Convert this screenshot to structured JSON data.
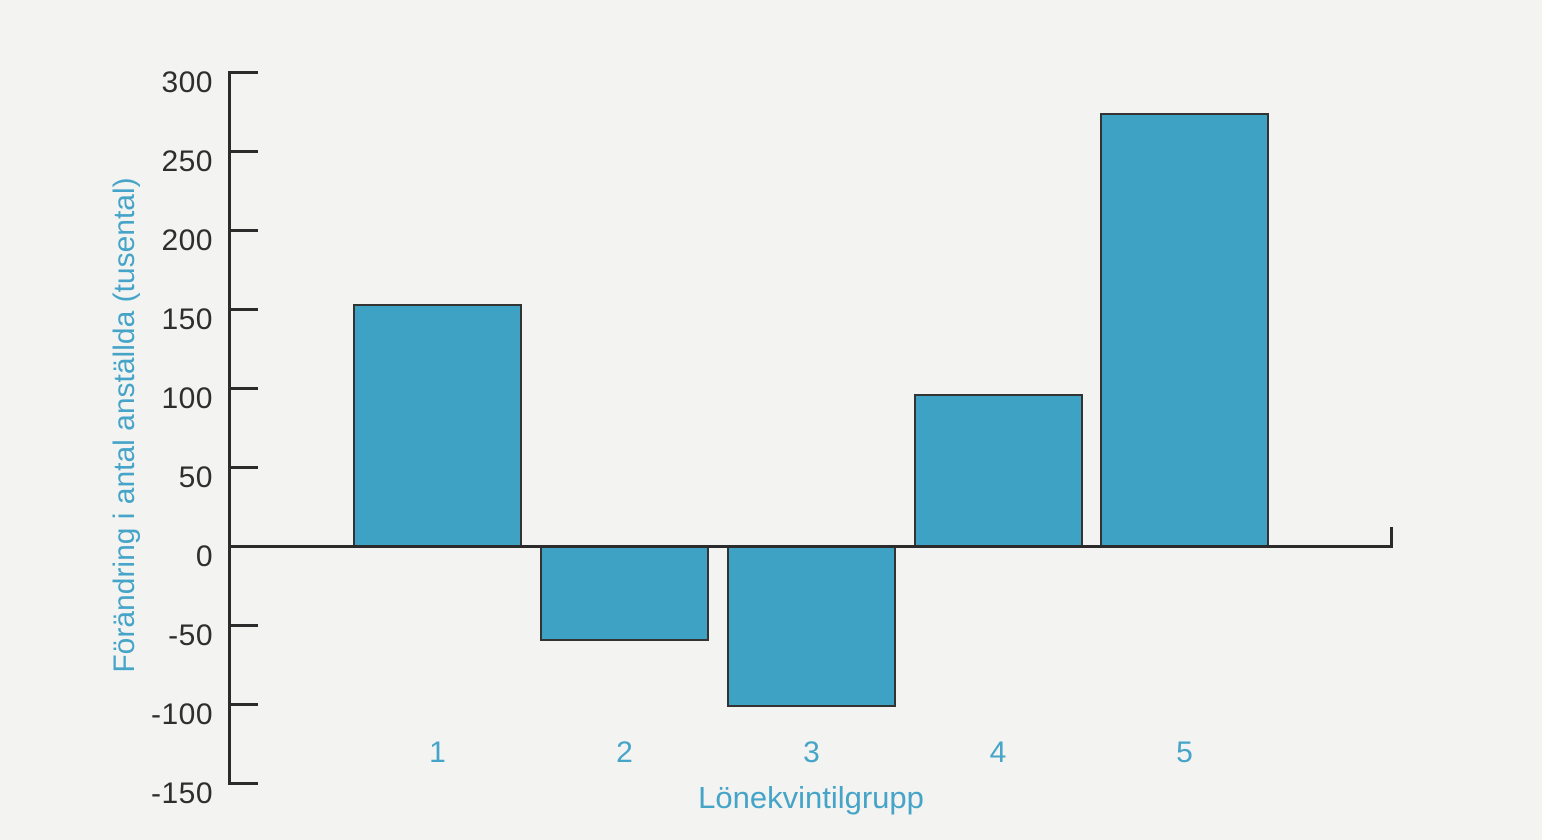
{
  "chart_data": {
    "type": "bar",
    "title": "",
    "categories": [
      "1",
      "2",
      "3",
      "4",
      "5"
    ],
    "values": [
      153,
      -60,
      -102,
      96,
      274
    ],
    "xlabel": "Lönekvintilgrupp",
    "ylabel": "Förändring i antal anställda (tusental)",
    "ylim": [
      -150,
      300
    ],
    "yticks": [
      300,
      250,
      200,
      150,
      100,
      50,
      0,
      -50,
      -100,
      -150
    ],
    "grid": false,
    "legend": false,
    "colors": {
      "bar_fill": "#3EA2C4",
      "bar_border": "#333333",
      "axis": "#2B2B2B",
      "y_tick_label": "#2E2E2E",
      "accent_text": "#45A4C8",
      "background": "#F3F3F1"
    }
  }
}
